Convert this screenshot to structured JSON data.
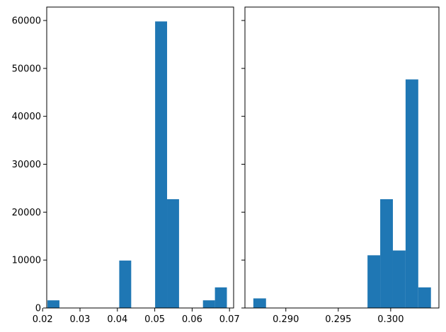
{
  "chart_data": [
    {
      "type": "bar",
      "title": "",
      "xlabel": "",
      "ylabel": "",
      "xlim": [
        0.0211,
        0.0711
      ],
      "ylim": [
        0,
        62800
      ],
      "x_ticks": [
        0.02,
        0.03,
        0.04,
        0.05,
        0.06,
        0.07
      ],
      "x_tick_labels": [
        "0.02",
        "0.03",
        "0.04",
        "0.05",
        "0.06",
        "0.07"
      ],
      "y_ticks": [
        0,
        10000,
        20000,
        30000,
        40000,
        50000,
        60000
      ],
      "y_tick_labels": [
        "0",
        "10000",
        "20000",
        "30000",
        "40000",
        "50000",
        "60000"
      ],
      "bin_edges": [
        0.0213,
        0.0245,
        0.0277,
        0.0309,
        0.0341,
        0.0373,
        0.0405,
        0.0437,
        0.0469,
        0.0501,
        0.0533,
        0.0565,
        0.0597,
        0.0629,
        0.0661,
        0.0693
      ],
      "values": [
        1600,
        0,
        0,
        0,
        0,
        0,
        9900,
        0,
        0,
        59800,
        22700,
        0,
        0,
        1600,
        4300
      ],
      "color": "#1f77b4",
      "grid": false
    },
    {
      "type": "bar",
      "title": "",
      "xlabel": "",
      "ylabel": "",
      "xlim": [
        0.2861,
        0.3046
      ],
      "ylim": [
        0,
        62800
      ],
      "x_ticks": [
        0.29,
        0.295,
        0.3
      ],
      "x_tick_labels": [
        "0.290",
        "0.295",
        "0.300"
      ],
      "y_ticks": [
        0,
        10000,
        20000,
        30000,
        40000,
        50000,
        60000
      ],
      "y_tick_labels": [],
      "bin_edges": [
        0.2869,
        0.28811,
        0.28932,
        0.29053,
        0.29174,
        0.29295,
        0.29416,
        0.29537,
        0.29658,
        0.29779,
        0.299,
        0.30021,
        0.30142,
        0.30263,
        0.30384
      ],
      "values": [
        2000,
        0,
        0,
        0,
        0,
        0,
        0,
        0,
        0,
        11000,
        22700,
        12000,
        47700,
        4300
      ],
      "color": "#1f77b4",
      "grid": false
    }
  ]
}
